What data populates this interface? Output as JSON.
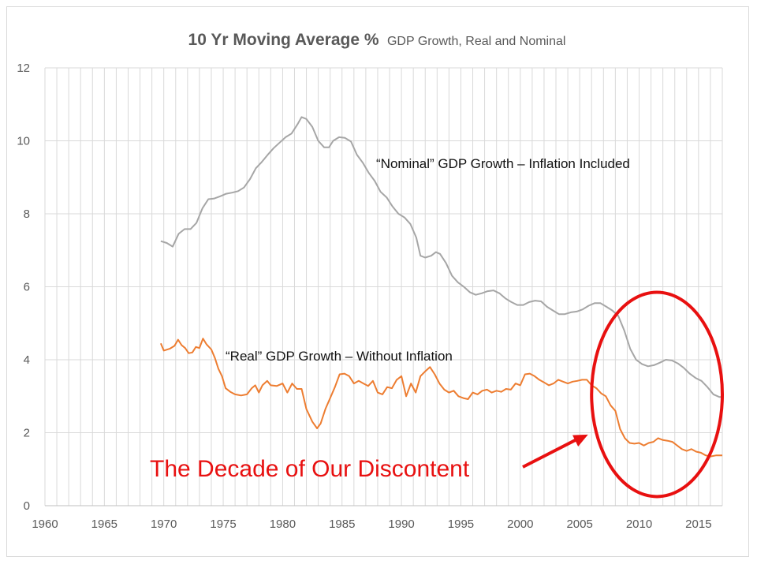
{
  "chart_data": {
    "type": "line",
    "title": "10 Yr Moving Average %",
    "subtitle": "GDP Growth, Real and Nominal",
    "xlabel": "",
    "ylabel": "",
    "xlim": [
      1960,
      2017
    ],
    "ylim": [
      0,
      12
    ],
    "x_ticks": [
      "1960",
      "1965",
      "1970",
      "1975",
      "1980",
      "1985",
      "1990",
      "1995",
      "2000",
      "2005",
      "2010",
      "2015"
    ],
    "y_ticks": [
      "0",
      "2",
      "4",
      "6",
      "8",
      "10",
      "12"
    ],
    "grid": "vertical-yearly-and-horizontal-major",
    "series": [
      {
        "name": "Nominal GDP Growth",
        "color": "#a6a6a6",
        "points": [
          [
            1969.75,
            7.25
          ],
          [
            1970.25,
            7.2
          ],
          [
            1970.75,
            7.1
          ],
          [
            1971.25,
            7.45
          ],
          [
            1971.75,
            7.58
          ],
          [
            1972.25,
            7.58
          ],
          [
            1972.75,
            7.75
          ],
          [
            1973.25,
            8.15
          ],
          [
            1973.75,
            8.4
          ],
          [
            1974.25,
            8.42
          ],
          [
            1974.75,
            8.48
          ],
          [
            1975.25,
            8.55
          ],
          [
            1975.75,
            8.58
          ],
          [
            1976.25,
            8.62
          ],
          [
            1976.75,
            8.72
          ],
          [
            1977.25,
            8.95
          ],
          [
            1977.75,
            9.25
          ],
          [
            1978.25,
            9.42
          ],
          [
            1978.75,
            9.62
          ],
          [
            1979.25,
            9.8
          ],
          [
            1979.75,
            9.95
          ],
          [
            1980.25,
            10.1
          ],
          [
            1980.75,
            10.2
          ],
          [
            1981.25,
            10.45
          ],
          [
            1981.6,
            10.65
          ],
          [
            1982.0,
            10.6
          ],
          [
            1982.5,
            10.38
          ],
          [
            1983.0,
            10.0
          ],
          [
            1983.5,
            9.82
          ],
          [
            1983.9,
            9.82
          ],
          [
            1984.25,
            10.0
          ],
          [
            1984.75,
            10.1
          ],
          [
            1985.25,
            10.08
          ],
          [
            1985.75,
            9.98
          ],
          [
            1986.25,
            9.62
          ],
          [
            1986.75,
            9.4
          ],
          [
            1987.25,
            9.12
          ],
          [
            1987.75,
            8.9
          ],
          [
            1988.25,
            8.6
          ],
          [
            1988.75,
            8.45
          ],
          [
            1989.25,
            8.2
          ],
          [
            1989.75,
            8.0
          ],
          [
            1990.25,
            7.9
          ],
          [
            1990.75,
            7.72
          ],
          [
            1991.25,
            7.35
          ],
          [
            1991.6,
            6.85
          ],
          [
            1992.0,
            6.8
          ],
          [
            1992.5,
            6.85
          ],
          [
            1992.9,
            6.95
          ],
          [
            1993.25,
            6.9
          ],
          [
            1993.75,
            6.65
          ],
          [
            1994.25,
            6.3
          ],
          [
            1994.75,
            6.12
          ],
          [
            1995.25,
            6.0
          ],
          [
            1995.75,
            5.85
          ],
          [
            1996.25,
            5.78
          ],
          [
            1996.75,
            5.82
          ],
          [
            1997.25,
            5.88
          ],
          [
            1997.75,
            5.9
          ],
          [
            1998.25,
            5.82
          ],
          [
            1998.75,
            5.68
          ],
          [
            1999.25,
            5.58
          ],
          [
            1999.75,
            5.5
          ],
          [
            2000.25,
            5.5
          ],
          [
            2000.75,
            5.58
          ],
          [
            2001.25,
            5.62
          ],
          [
            2001.75,
            5.6
          ],
          [
            2002.25,
            5.45
          ],
          [
            2002.75,
            5.35
          ],
          [
            2003.25,
            5.25
          ],
          [
            2003.75,
            5.25
          ],
          [
            2004.25,
            5.3
          ],
          [
            2004.75,
            5.32
          ],
          [
            2005.25,
            5.38
          ],
          [
            2005.75,
            5.48
          ],
          [
            2006.25,
            5.55
          ],
          [
            2006.75,
            5.55
          ],
          [
            2007.25,
            5.45
          ],
          [
            2007.75,
            5.35
          ],
          [
            2008.25,
            5.2
          ],
          [
            2008.75,
            4.8
          ],
          [
            2009.25,
            4.3
          ],
          [
            2009.75,
            4.0
          ],
          [
            2010.25,
            3.88
          ],
          [
            2010.75,
            3.82
          ],
          [
            2011.25,
            3.85
          ],
          [
            2011.75,
            3.92
          ],
          [
            2012.25,
            4.0
          ],
          [
            2012.75,
            3.98
          ],
          [
            2013.25,
            3.9
          ],
          [
            2013.75,
            3.78
          ],
          [
            2014.25,
            3.62
          ],
          [
            2014.75,
            3.5
          ],
          [
            2015.25,
            3.42
          ],
          [
            2015.75,
            3.25
          ],
          [
            2016.25,
            3.05
          ],
          [
            2016.75,
            2.98
          ],
          [
            2017.0,
            2.98
          ]
        ]
      },
      {
        "name": "Real GDP Growth",
        "color": "#ed7d31",
        "points": [
          [
            1969.75,
            4.45
          ],
          [
            1970.0,
            4.25
          ],
          [
            1970.5,
            4.3
          ],
          [
            1970.9,
            4.38
          ],
          [
            1971.2,
            4.55
          ],
          [
            1971.5,
            4.4
          ],
          [
            1971.8,
            4.32
          ],
          [
            1972.1,
            4.18
          ],
          [
            1972.4,
            4.2
          ],
          [
            1972.7,
            4.35
          ],
          [
            1973.0,
            4.32
          ],
          [
            1973.3,
            4.58
          ],
          [
            1973.6,
            4.42
          ],
          [
            1974.0,
            4.28
          ],
          [
            1974.3,
            4.05
          ],
          [
            1974.6,
            3.75
          ],
          [
            1974.9,
            3.55
          ],
          [
            1975.2,
            3.22
          ],
          [
            1975.6,
            3.12
          ],
          [
            1976.0,
            3.05
          ],
          [
            1976.5,
            3.02
          ],
          [
            1977.0,
            3.05
          ],
          [
            1977.4,
            3.22
          ],
          [
            1977.7,
            3.3
          ],
          [
            1978.0,
            3.1
          ],
          [
            1978.3,
            3.3
          ],
          [
            1978.7,
            3.42
          ],
          [
            1979.0,
            3.3
          ],
          [
            1979.5,
            3.28
          ],
          [
            1980.0,
            3.35
          ],
          [
            1980.4,
            3.1
          ],
          [
            1980.8,
            3.35
          ],
          [
            1981.2,
            3.2
          ],
          [
            1981.6,
            3.2
          ],
          [
            1982.0,
            2.65
          ],
          [
            1982.5,
            2.3
          ],
          [
            1982.9,
            2.12
          ],
          [
            1983.2,
            2.25
          ],
          [
            1983.6,
            2.65
          ],
          [
            1984.0,
            2.95
          ],
          [
            1984.4,
            3.25
          ],
          [
            1984.8,
            3.6
          ],
          [
            1985.2,
            3.62
          ],
          [
            1985.6,
            3.55
          ],
          [
            1986.0,
            3.35
          ],
          [
            1986.4,
            3.42
          ],
          [
            1986.8,
            3.35
          ],
          [
            1987.2,
            3.28
          ],
          [
            1987.6,
            3.42
          ],
          [
            1988.0,
            3.1
          ],
          [
            1988.4,
            3.05
          ],
          [
            1988.8,
            3.25
          ],
          [
            1989.2,
            3.22
          ],
          [
            1989.6,
            3.45
          ],
          [
            1990.0,
            3.55
          ],
          [
            1990.4,
            3.0
          ],
          [
            1990.8,
            3.35
          ],
          [
            1991.2,
            3.1
          ],
          [
            1991.6,
            3.55
          ],
          [
            1992.0,
            3.68
          ],
          [
            1992.4,
            3.8
          ],
          [
            1992.8,
            3.6
          ],
          [
            1993.2,
            3.35
          ],
          [
            1993.6,
            3.18
          ],
          [
            1994.0,
            3.1
          ],
          [
            1994.4,
            3.15
          ],
          [
            1994.8,
            3.0
          ],
          [
            1995.2,
            2.95
          ],
          [
            1995.6,
            2.92
          ],
          [
            1996.0,
            3.1
          ],
          [
            1996.4,
            3.05
          ],
          [
            1996.8,
            3.15
          ],
          [
            1997.2,
            3.18
          ],
          [
            1997.6,
            3.1
          ],
          [
            1998.0,
            3.15
          ],
          [
            1998.4,
            3.12
          ],
          [
            1998.8,
            3.2
          ],
          [
            1999.2,
            3.18
          ],
          [
            1999.6,
            3.35
          ],
          [
            2000.0,
            3.3
          ],
          [
            2000.4,
            3.6
          ],
          [
            2000.8,
            3.62
          ],
          [
            2001.2,
            3.55
          ],
          [
            2001.6,
            3.45
          ],
          [
            2002.0,
            3.38
          ],
          [
            2002.4,
            3.3
          ],
          [
            2002.8,
            3.35
          ],
          [
            2003.2,
            3.45
          ],
          [
            2003.6,
            3.4
          ],
          [
            2004.0,
            3.35
          ],
          [
            2004.4,
            3.4
          ],
          [
            2004.8,
            3.42
          ],
          [
            2005.2,
            3.45
          ],
          [
            2005.6,
            3.45
          ],
          [
            2006.0,
            3.3
          ],
          [
            2006.4,
            3.22
          ],
          [
            2006.8,
            3.08
          ],
          [
            2007.2,
            3.0
          ],
          [
            2007.6,
            2.75
          ],
          [
            2008.0,
            2.6
          ],
          [
            2008.4,
            2.1
          ],
          [
            2008.8,
            1.85
          ],
          [
            2009.2,
            1.72
          ],
          [
            2009.6,
            1.7
          ],
          [
            2010.0,
            1.72
          ],
          [
            2010.4,
            1.65
          ],
          [
            2010.8,
            1.72
          ],
          [
            2011.2,
            1.75
          ],
          [
            2011.6,
            1.85
          ],
          [
            2012.0,
            1.8
          ],
          [
            2012.4,
            1.78
          ],
          [
            2012.8,
            1.75
          ],
          [
            2013.2,
            1.65
          ],
          [
            2013.6,
            1.55
          ],
          [
            2014.0,
            1.5
          ],
          [
            2014.4,
            1.55
          ],
          [
            2014.8,
            1.48
          ],
          [
            2015.2,
            1.45
          ],
          [
            2015.6,
            1.38
          ],
          [
            2016.0,
            1.35
          ],
          [
            2016.5,
            1.38
          ],
          [
            2017.0,
            1.38
          ]
        ]
      }
    ],
    "annotations": [
      {
        "text": "“Nominal” GDP Growth – Inflation Included",
        "color": "#111111"
      },
      {
        "text": "“Real” GDP Growth – Without Inflation",
        "color": "#111111"
      },
      {
        "text": "The Decade of Our Discontent",
        "color": "#e81010"
      }
    ],
    "highlight": {
      "shape": "ellipse",
      "color": "#e81010",
      "x_range": [
        2006,
        2017
      ],
      "y_range": [
        0.25,
        5.85
      ]
    }
  }
}
